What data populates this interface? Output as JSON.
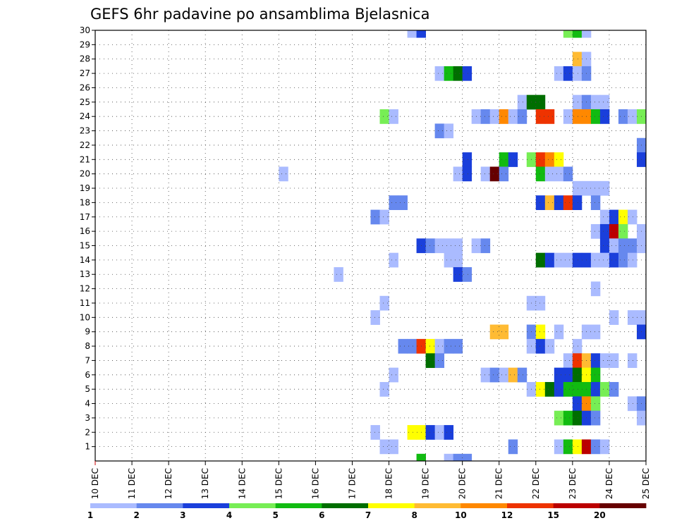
{
  "chart_data": {
    "type": "heatmap",
    "title": "GEFS 6hr padavine po ansamblima Bjelasnica",
    "xlabel": "",
    "ylabel": "",
    "x_unit": "days since 10 DEC (6-hour steps)",
    "xlim": [
      0,
      15
    ],
    "ylim": [
      0,
      30
    ],
    "x_ticks": [
      {
        "value": 0,
        "label": "10 DEC"
      },
      {
        "value": 1,
        "label": "11 DEC"
      },
      {
        "value": 2,
        "label": "12 DEC"
      },
      {
        "value": 3,
        "label": "13 DEC"
      },
      {
        "value": 4,
        "label": "14 DEC"
      },
      {
        "value": 5,
        "label": "15 DEC"
      },
      {
        "value": 6,
        "label": "16 DEC"
      },
      {
        "value": 7,
        "label": "17 DEC"
      },
      {
        "value": 8,
        "label": "18 DEC"
      },
      {
        "value": 9,
        "label": "19 DEC"
      },
      {
        "value": 10,
        "label": "20 DEC"
      },
      {
        "value": 11,
        "label": "21 DEC"
      },
      {
        "value": 12,
        "label": "22 DEC"
      },
      {
        "value": 13,
        "label": "23 DEC"
      },
      {
        "value": 14,
        "label": "24 DEC"
      },
      {
        "value": 15,
        "label": "25 DEC"
      }
    ],
    "y_ticks": [
      "1",
      "2",
      "3",
      "4",
      "5",
      "6",
      "7",
      "8",
      "9",
      "10",
      "11",
      "12",
      "13",
      "14",
      "15",
      "16",
      "17",
      "18",
      "19",
      "20",
      "21",
      "22",
      "23",
      "24",
      "25",
      "26",
      "27",
      "28",
      "29",
      "30"
    ],
    "grid": "dotted",
    "legend_position": "bottom",
    "levels": [
      {
        "color": "#aabbff",
        "label": "1"
      },
      {
        "color": "#6688ee",
        "label": "2"
      },
      {
        "color": "#1a3fdb",
        "label": "3"
      },
      {
        "color": "#77ee55",
        "label": "4"
      },
      {
        "color": "#11bb11",
        "label": "5"
      },
      {
        "color": "#006e00",
        "label": "6"
      },
      {
        "color": "#ffff00",
        "label": "7"
      },
      {
        "color": "#ffbb33",
        "label": "8"
      },
      {
        "color": "#ff8800",
        "label": "10"
      },
      {
        "color": "#ee3300",
        "label": "12"
      },
      {
        "color": "#bb0000",
        "label": "15"
      },
      {
        "color": "#660000",
        "label": "20"
      }
    ],
    "cells": [
      {
        "m": 30,
        "x": 8.5,
        "v": 1
      },
      {
        "m": 30,
        "x": 8.75,
        "v": 3
      },
      {
        "m": 30,
        "x": 12.75,
        "v": 4
      },
      {
        "m": 30,
        "x": 13.0,
        "v": 5
      },
      {
        "m": 30,
        "x": 13.25,
        "v": 1
      },
      {
        "m": 28,
        "x": 13.0,
        "v": 8
      },
      {
        "m": 28,
        "x": 13.25,
        "v": 1
      },
      {
        "m": 27,
        "x": 9.25,
        "v": 1
      },
      {
        "m": 27,
        "x": 9.5,
        "v": 5
      },
      {
        "m": 27,
        "x": 9.75,
        "v": 6
      },
      {
        "m": 27,
        "x": 10.0,
        "v": 3
      },
      {
        "m": 27,
        "x": 12.5,
        "v": 1
      },
      {
        "m": 27,
        "x": 12.75,
        "v": 3
      },
      {
        "m": 27,
        "x": 13.0,
        "v": 1
      },
      {
        "m": 27,
        "x": 13.25,
        "v": 2
      },
      {
        "m": 25,
        "x": 11.5,
        "v": 1
      },
      {
        "m": 25,
        "x": 11.75,
        "v": 6
      },
      {
        "m": 25,
        "x": 12.0,
        "v": 6
      },
      {
        "m": 25,
        "x": 13.0,
        "v": 1
      },
      {
        "m": 25,
        "x": 13.25,
        "v": 2
      },
      {
        "m": 25,
        "x": 13.5,
        "v": 1
      },
      {
        "m": 25,
        "x": 13.75,
        "v": 1
      },
      {
        "m": 24,
        "x": 7.75,
        "v": 4
      },
      {
        "m": 24,
        "x": 8.0,
        "v": 1
      },
      {
        "m": 24,
        "x": 10.25,
        "v": 1
      },
      {
        "m": 24,
        "x": 10.5,
        "v": 2
      },
      {
        "m": 24,
        "x": 10.75,
        "v": 1
      },
      {
        "m": 24,
        "x": 11.0,
        "v": 10
      },
      {
        "m": 24,
        "x": 11.25,
        "v": 1
      },
      {
        "m": 24,
        "x": 11.5,
        "v": 2
      },
      {
        "m": 24,
        "x": 12.0,
        "v": 12
      },
      {
        "m": 24,
        "x": 12.25,
        "v": 12
      },
      {
        "m": 24,
        "x": 12.75,
        "v": 1
      },
      {
        "m": 24,
        "x": 13.0,
        "v": 10
      },
      {
        "m": 24,
        "x": 13.25,
        "v": 10
      },
      {
        "m": 24,
        "x": 13.5,
        "v": 5
      },
      {
        "m": 24,
        "x": 13.75,
        "v": 3
      },
      {
        "m": 24,
        "x": 14.25,
        "v": 2
      },
      {
        "m": 24,
        "x": 14.5,
        "v": 1
      },
      {
        "m": 24,
        "x": 14.75,
        "v": 4
      },
      {
        "m": 23,
        "x": 9.25,
        "v": 2
      },
      {
        "m": 23,
        "x": 9.5,
        "v": 1
      },
      {
        "m": 22,
        "x": 14.75,
        "v": 2
      },
      {
        "m": 21,
        "x": 10.0,
        "v": 3
      },
      {
        "m": 21,
        "x": 11.0,
        "v": 5
      },
      {
        "m": 21,
        "x": 11.25,
        "v": 3
      },
      {
        "m": 21,
        "x": 11.75,
        "v": 4
      },
      {
        "m": 21,
        "x": 12.0,
        "v": 12
      },
      {
        "m": 21,
        "x": 12.25,
        "v": 10
      },
      {
        "m": 21,
        "x": 12.5,
        "v": 7
      },
      {
        "m": 21,
        "x": 14.75,
        "v": 3
      },
      {
        "m": 20,
        "x": 5.0,
        "v": 1
      },
      {
        "m": 20,
        "x": 9.75,
        "v": 1
      },
      {
        "m": 20,
        "x": 10.0,
        "v": 3
      },
      {
        "m": 20,
        "x": 10.5,
        "v": 1
      },
      {
        "m": 20,
        "x": 10.75,
        "v": 20
      },
      {
        "m": 20,
        "x": 11.0,
        "v": 2
      },
      {
        "m": 20,
        "x": 12.0,
        "v": 5
      },
      {
        "m": 20,
        "x": 12.25,
        "v": 1
      },
      {
        "m": 20,
        "x": 12.5,
        "v": 1
      },
      {
        "m": 20,
        "x": 12.75,
        "v": 2
      },
      {
        "m": 19,
        "x": 13.0,
        "v": 1
      },
      {
        "m": 19,
        "x": 13.25,
        "v": 1
      },
      {
        "m": 19,
        "x": 13.5,
        "v": 1
      },
      {
        "m": 19,
        "x": 13.75,
        "v": 1
      },
      {
        "m": 18,
        "x": 8.0,
        "v": 2
      },
      {
        "m": 18,
        "x": 8.25,
        "v": 2
      },
      {
        "m": 18,
        "x": 12.0,
        "v": 3
      },
      {
        "m": 18,
        "x": 12.25,
        "v": 8
      },
      {
        "m": 18,
        "x": 12.5,
        "v": 3
      },
      {
        "m": 18,
        "x": 12.75,
        "v": 12
      },
      {
        "m": 18,
        "x": 13.0,
        "v": 3
      },
      {
        "m": 18,
        "x": 13.5,
        "v": 2
      },
      {
        "m": 17,
        "x": 7.5,
        "v": 2
      },
      {
        "m": 17,
        "x": 7.75,
        "v": 1
      },
      {
        "m": 17,
        "x": 13.75,
        "v": 1
      },
      {
        "m": 17,
        "x": 14.0,
        "v": 3
      },
      {
        "m": 17,
        "x": 14.25,
        "v": 7
      },
      {
        "m": 17,
        "x": 14.5,
        "v": 1
      },
      {
        "m": 16,
        "x": 13.5,
        "v": 1
      },
      {
        "m": 16,
        "x": 13.75,
        "v": 3
      },
      {
        "m": 16,
        "x": 14.0,
        "v": 15
      },
      {
        "m": 16,
        "x": 14.25,
        "v": 4
      },
      {
        "m": 16,
        "x": 14.75,
        "v": 1
      },
      {
        "m": 15,
        "x": 8.75,
        "v": 3
      },
      {
        "m": 15,
        "x": 9.0,
        "v": 2
      },
      {
        "m": 15,
        "x": 9.25,
        "v": 1
      },
      {
        "m": 15,
        "x": 9.5,
        "v": 1
      },
      {
        "m": 15,
        "x": 9.75,
        "v": 1
      },
      {
        "m": 15,
        "x": 10.25,
        "v": 1
      },
      {
        "m": 15,
        "x": 10.5,
        "v": 2
      },
      {
        "m": 15,
        "x": 13.75,
        "v": 3
      },
      {
        "m": 15,
        "x": 14.0,
        "v": 1
      },
      {
        "m": 15,
        "x": 14.25,
        "v": 2
      },
      {
        "m": 15,
        "x": 14.5,
        "v": 2
      },
      {
        "m": 15,
        "x": 14.75,
        "v": 1
      },
      {
        "m": 14,
        "x": 8.0,
        "v": 1
      },
      {
        "m": 14,
        "x": 9.5,
        "v": 1
      },
      {
        "m": 14,
        "x": 9.75,
        "v": 1
      },
      {
        "m": 14,
        "x": 12.0,
        "v": 6
      },
      {
        "m": 14,
        "x": 12.25,
        "v": 3
      },
      {
        "m": 14,
        "x": 12.5,
        "v": 1
      },
      {
        "m": 14,
        "x": 12.75,
        "v": 1
      },
      {
        "m": 14,
        "x": 13.0,
        "v": 3
      },
      {
        "m": 14,
        "x": 13.25,
        "v": 3
      },
      {
        "m": 14,
        "x": 13.5,
        "v": 1
      },
      {
        "m": 14,
        "x": 13.75,
        "v": 1
      },
      {
        "m": 14,
        "x": 14.0,
        "v": 3
      },
      {
        "m": 14,
        "x": 14.25,
        "v": 2
      },
      {
        "m": 14,
        "x": 14.5,
        "v": 1
      },
      {
        "m": 13,
        "x": 6.5,
        "v": 1
      },
      {
        "m": 13,
        "x": 9.75,
        "v": 3
      },
      {
        "m": 13,
        "x": 10.0,
        "v": 2
      },
      {
        "m": 12,
        "x": 13.5,
        "v": 1
      },
      {
        "m": 11,
        "x": 7.75,
        "v": 1
      },
      {
        "m": 11,
        "x": 11.75,
        "v": 1
      },
      {
        "m": 11,
        "x": 12.0,
        "v": 1
      },
      {
        "m": 10,
        "x": 7.5,
        "v": 1
      },
      {
        "m": 10,
        "x": 14.0,
        "v": 1
      },
      {
        "m": 10,
        "x": 14.5,
        "v": 1
      },
      {
        "m": 10,
        "x": 14.75,
        "v": 1
      },
      {
        "m": 9,
        "x": 10.75,
        "v": 8
      },
      {
        "m": 9,
        "x": 11.0,
        "v": 8
      },
      {
        "m": 9,
        "x": 11.75,
        "v": 2
      },
      {
        "m": 9,
        "x": 12.0,
        "v": 7
      },
      {
        "m": 9,
        "x": 12.5,
        "v": 1
      },
      {
        "m": 9,
        "x": 13.25,
        "v": 1
      },
      {
        "m": 9,
        "x": 13.5,
        "v": 1
      },
      {
        "m": 9,
        "x": 14.75,
        "v": 3
      },
      {
        "m": 8,
        "x": 8.25,
        "v": 2
      },
      {
        "m": 8,
        "x": 8.5,
        "v": 2
      },
      {
        "m": 8,
        "x": 8.75,
        "v": 12
      },
      {
        "m": 8,
        "x": 9.0,
        "v": 7
      },
      {
        "m": 8,
        "x": 9.25,
        "v": 1
      },
      {
        "m": 8,
        "x": 9.5,
        "v": 2
      },
      {
        "m": 8,
        "x": 9.75,
        "v": 2
      },
      {
        "m": 8,
        "x": 11.75,
        "v": 1
      },
      {
        "m": 8,
        "x": 12.0,
        "v": 3
      },
      {
        "m": 8,
        "x": 12.25,
        "v": 1
      },
      {
        "m": 8,
        "x": 13.0,
        "v": 1
      },
      {
        "m": 7,
        "x": 9.0,
        "v": 6
      },
      {
        "m": 7,
        "x": 9.25,
        "v": 2
      },
      {
        "m": 7,
        "x": 12.75,
        "v": 1
      },
      {
        "m": 7,
        "x": 13.0,
        "v": 12
      },
      {
        "m": 7,
        "x": 13.25,
        "v": 8
      },
      {
        "m": 7,
        "x": 13.5,
        "v": 3
      },
      {
        "m": 7,
        "x": 13.75,
        "v": 1
      },
      {
        "m": 7,
        "x": 14.0,
        "v": 1
      },
      {
        "m": 7,
        "x": 14.5,
        "v": 1
      },
      {
        "m": 6,
        "x": 8.0,
        "v": 1
      },
      {
        "m": 6,
        "x": 10.5,
        "v": 1
      },
      {
        "m": 6,
        "x": 10.75,
        "v": 2
      },
      {
        "m": 6,
        "x": 11.0,
        "v": 1
      },
      {
        "m": 6,
        "x": 11.25,
        "v": 8
      },
      {
        "m": 6,
        "x": 11.5,
        "v": 2
      },
      {
        "m": 6,
        "x": 12.5,
        "v": 3
      },
      {
        "m": 6,
        "x": 12.75,
        "v": 3
      },
      {
        "m": 6,
        "x": 13.0,
        "v": 6
      },
      {
        "m": 6,
        "x": 13.25,
        "v": 7
      },
      {
        "m": 6,
        "x": 13.5,
        "v": 5
      },
      {
        "m": 5,
        "x": 7.75,
        "v": 1
      },
      {
        "m": 5,
        "x": 11.75,
        "v": 1
      },
      {
        "m": 5,
        "x": 12.0,
        "v": 7
      },
      {
        "m": 5,
        "x": 12.25,
        "v": 6
      },
      {
        "m": 5,
        "x": 12.5,
        "v": 3
      },
      {
        "m": 5,
        "x": 12.75,
        "v": 5
      },
      {
        "m": 5,
        "x": 13.0,
        "v": 5
      },
      {
        "m": 5,
        "x": 13.25,
        "v": 5
      },
      {
        "m": 5,
        "x": 13.5,
        "v": 3
      },
      {
        "m": 5,
        "x": 13.75,
        "v": 4
      },
      {
        "m": 5,
        "x": 14.0,
        "v": 2
      },
      {
        "m": 4,
        "x": 13.0,
        "v": 3
      },
      {
        "m": 4,
        "x": 13.25,
        "v": 10
      },
      {
        "m": 4,
        "x": 13.5,
        "v": 4
      },
      {
        "m": 4,
        "x": 14.5,
        "v": 1
      },
      {
        "m": 4,
        "x": 14.75,
        "v": 2
      },
      {
        "m": 3,
        "x": 12.5,
        "v": 4
      },
      {
        "m": 3,
        "x": 12.75,
        "v": 5
      },
      {
        "m": 3,
        "x": 13.0,
        "v": 6
      },
      {
        "m": 3,
        "x": 13.25,
        "v": 3
      },
      {
        "m": 3,
        "x": 13.5,
        "v": 2
      },
      {
        "m": 3,
        "x": 14.75,
        "v": 1
      },
      {
        "m": 2,
        "x": 7.5,
        "v": 1
      },
      {
        "m": 2,
        "x": 8.5,
        "v": 7
      },
      {
        "m": 2,
        "x": 8.75,
        "v": 7
      },
      {
        "m": 2,
        "x": 9.0,
        "v": 3
      },
      {
        "m": 2,
        "x": 9.25,
        "v": 1
      },
      {
        "m": 2,
        "x": 9.5,
        "v": 3
      },
      {
        "m": 1,
        "x": 7.75,
        "v": 1
      },
      {
        "m": 1,
        "x": 8.0,
        "v": 1
      },
      {
        "m": 1,
        "x": 11.25,
        "v": 2
      },
      {
        "m": 1,
        "x": 12.5,
        "v": 1
      },
      {
        "m": 1,
        "x": 12.75,
        "v": 5
      },
      {
        "m": 1,
        "x": 13.0,
        "v": 7
      },
      {
        "m": 1,
        "x": 13.25,
        "v": 15
      },
      {
        "m": 1,
        "x": 13.5,
        "v": 2
      },
      {
        "m": 1,
        "x": 13.75,
        "v": 1
      },
      {
        "m": 0,
        "x": 8.75,
        "v": 5
      },
      {
        "m": 0,
        "x": 9.5,
        "v": 1
      },
      {
        "m": 0,
        "x": 9.75,
        "v": 2
      },
      {
        "m": 0,
        "x": 10.0,
        "v": 2
      }
    ]
  }
}
